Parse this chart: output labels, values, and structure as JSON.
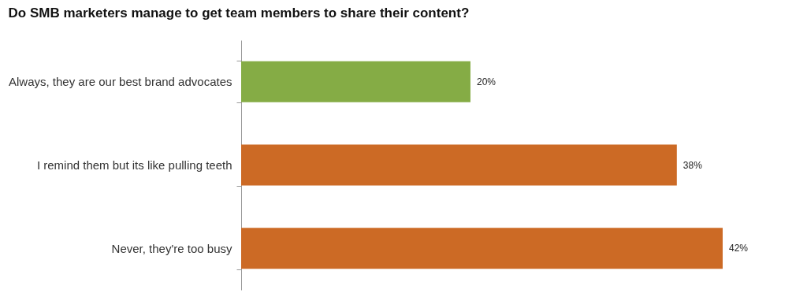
{
  "chart_data": {
    "type": "bar",
    "orientation": "horizontal",
    "title": "Do SMB marketers manage to get team members to share their content?",
    "categories": [
      "Always, they are our best brand advocates",
      "I remind them but its like pulling teeth",
      "Never, they're too busy"
    ],
    "values": [
      20,
      38,
      42
    ],
    "colors": [
      "#85ac45",
      "#cc6a25",
      "#cc6a25"
    ],
    "value_labels": [
      "20%",
      "38%",
      "42%"
    ],
    "grid": false
  }
}
